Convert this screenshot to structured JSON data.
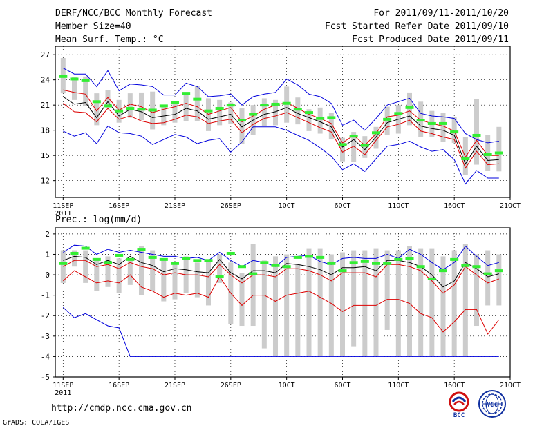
{
  "header": {
    "title": "DERF/NCC/BCC Monthly Forecast",
    "member_size": "Member Size=40",
    "variable": "Mean Surf. Temp.: °C",
    "period": "For 2011/09/11-2011/10/20",
    "fcst_started": "Fcst Started Refer Date 2011/09/10",
    "fcst_produced": "Fcst Produced Date 2011/09/11"
  },
  "footer": {
    "url": "http://cmdp.ncc.cma.gov.cn",
    "grads": "GrADS: COLA/IGES",
    "logo_bcc_text": "BCC",
    "logo_ncc_text": "NCC"
  },
  "colors": {
    "max_line": "#0000dd",
    "ensemble_mean": "#000000",
    "spread_lines": "#dd0000",
    "bars": "#cccccc",
    "observed_marks": "#33ee33",
    "grid": "#000000"
  },
  "chart_data": [
    {
      "type": "line",
      "title": "Mean Surf. Temp.: °C",
      "ylim": [
        10,
        28
      ],
      "yticks": [
        12,
        15,
        18,
        21,
        24,
        27
      ],
      "ytick_labels": [
        "12",
        "15",
        "18",
        "21",
        "24",
        "27"
      ],
      "xticks": [
        1,
        6,
        11,
        16,
        21,
        26,
        31,
        36,
        41
      ],
      "xtick_labels": [
        "11SEP",
        "16SEP",
        "21SEP",
        "26SEP",
        "1OCT",
        "6OCT",
        "11OCT",
        "16OCT",
        "21OCT"
      ],
      "x_year_label": "2011",
      "xlim": [
        0.3,
        41
      ],
      "grid": true,
      "days": [
        1,
        2,
        3,
        4,
        5,
        6,
        7,
        8,
        9,
        10,
        11,
        12,
        13,
        14,
        15,
        16,
        17,
        18,
        19,
        20,
        21,
        22,
        23,
        24,
        25,
        26,
        27,
        28,
        29,
        30,
        31,
        32,
        33,
        34,
        35,
        36,
        37,
        38,
        39,
        40
      ],
      "series": [
        {
          "name": "max",
          "color": "#0000dd",
          "values": [
            25.4,
            24.7,
            24.7,
            23.2,
            25.1,
            22.7,
            23.5,
            23.4,
            23.2,
            22.2,
            22.2,
            23.6,
            23.2,
            22.0,
            22.1,
            22.3,
            21.0,
            22.0,
            22.3,
            22.5,
            24.1,
            23.4,
            22.3,
            22.0,
            21.2,
            18.6,
            19.2,
            18.0,
            19.4,
            21.0,
            21.4,
            21.8,
            20.0,
            19.7,
            19.6,
            19.4,
            17.6,
            16.9,
            16.5,
            16.7
          ]
        },
        {
          "name": "upper",
          "color": "#dd0000",
          "values": [
            22.8,
            22.5,
            22.3,
            20.3,
            21.9,
            20.4,
            21.1,
            20.8,
            20.1,
            20.5,
            20.8,
            21.2,
            20.8,
            19.9,
            20.3,
            20.7,
            19.0,
            19.7,
            20.5,
            21.0,
            21.3,
            20.6,
            19.9,
            19.4,
            18.8,
            16.5,
            17.4,
            16.2,
            17.6,
            19.6,
            19.8,
            20.3,
            19.2,
            18.8,
            18.5,
            17.9,
            14.8,
            16.8,
            15.0,
            15.0
          ]
        },
        {
          "name": "mean",
          "color": "#000000",
          "values": [
            22.0,
            21.1,
            21.3,
            19.5,
            21.4,
            19.7,
            20.5,
            20.2,
            19.5,
            19.7,
            19.9,
            20.6,
            20.3,
            19.3,
            19.6,
            19.9,
            18.4,
            19.2,
            19.9,
            20.2,
            20.7,
            20.0,
            19.5,
            19.0,
            18.4,
            16.0,
            16.9,
            15.7,
            17.2,
            18.9,
            19.3,
            19.7,
            18.5,
            18.2,
            18.0,
            17.4,
            14.0,
            16.1,
            14.4,
            14.5
          ]
        },
        {
          "name": "lower",
          "color": "#dd0000",
          "values": [
            21.2,
            20.2,
            20.1,
            19.0,
            20.6,
            19.3,
            19.7,
            19.1,
            18.8,
            18.9,
            19.3,
            19.8,
            19.6,
            18.8,
            19.1,
            19.3,
            17.7,
            18.7,
            19.4,
            19.7,
            20.1,
            19.5,
            18.9,
            18.3,
            17.8,
            15.4,
            16.1,
            15.1,
            16.8,
            18.4,
            18.7,
            19.2,
            17.9,
            17.6,
            17.2,
            16.9,
            13.5,
            15.5,
            13.9,
            14.0
          ]
        },
        {
          "name": "min",
          "color": "#0000dd",
          "values": [
            17.9,
            17.3,
            17.7,
            16.4,
            18.5,
            17.7,
            17.6,
            17.3,
            16.3,
            16.9,
            17.5,
            17.2,
            16.4,
            16.8,
            17.0,
            15.4,
            16.6,
            18.4,
            18.4,
            18.4,
            18.0,
            17.4,
            16.8,
            15.9,
            14.9,
            13.3,
            14.0,
            13.1,
            14.6,
            16.1,
            16.3,
            16.7,
            16.0,
            15.5,
            15.7,
            14.5,
            11.6,
            13.2,
            12.3,
            12.3
          ]
        }
      ],
      "bars": [
        {
          "low": 22.4,
          "high": 26.6
        },
        {
          "low": 21.6,
          "high": 24.3
        },
        {
          "low": 20.9,
          "high": 24.4
        },
        {
          "low": 18.6,
          "high": 22.4
        },
        {
          "low": 20.7,
          "high": 22.8
        },
        {
          "low": 18.9,
          "high": 21.6
        },
        {
          "low": 19.5,
          "high": 22.4
        },
        {
          "low": 19.2,
          "high": 22.5
        },
        {
          "low": 18.1,
          "high": 22.6
        },
        {
          "low": 18.6,
          "high": 21.0
        },
        {
          "low": 18.9,
          "high": 21.5
        },
        {
          "low": 19.1,
          "high": 22.5
        },
        {
          "low": 19.1,
          "high": 23.3
        },
        {
          "low": 17.9,
          "high": 21.8
        },
        {
          "low": 18.6,
          "high": 21.6
        },
        {
          "low": 18.8,
          "high": 21.3
        },
        {
          "low": 16.4,
          "high": 20.6
        },
        {
          "low": 17.4,
          "high": 21.0
        },
        {
          "low": 18.5,
          "high": 21.8
        },
        {
          "low": 18.6,
          "high": 21.6
        },
        {
          "low": 18.9,
          "high": 23.2
        },
        {
          "low": 18.7,
          "high": 21.9
        },
        {
          "low": 17.9,
          "high": 20.5
        },
        {
          "low": 17.6,
          "high": 20.7
        },
        {
          "low": 16.9,
          "high": 20.1
        },
        {
          "low": 14.3,
          "high": 17.1
        },
        {
          "low": 14.2,
          "high": 17.8
        },
        {
          "low": 14.7,
          "high": 17.3
        },
        {
          "low": 15.8,
          "high": 18.4
        },
        {
          "low": 17.4,
          "high": 20.8
        },
        {
          "low": 17.6,
          "high": 21.0
        },
        {
          "low": 18.6,
          "high": 22.5
        },
        {
          "low": 17.2,
          "high": 21.4
        },
        {
          "low": 17.2,
          "high": 20.3
        },
        {
          "low": 16.6,
          "high": 20.1
        },
        {
          "low": 16.5,
          "high": 19.6
        },
        {
          "low": 12.7,
          "high": 17.2
        },
        {
          "low": 13.9,
          "high": 21.7
        },
        {
          "low": 13.2,
          "high": 17.4
        },
        {
          "low": 13.1,
          "high": 18.4
        }
      ],
      "observed": [
        24.4,
        24.1,
        23.9,
        21.4,
        20.9,
        20.3,
        20.6,
        20.5,
        20.4,
        20.9,
        21.3,
        22.4,
        21.7,
        20.3,
        20.6,
        21.0,
        19.2,
        19.9,
        21.0,
        21.1,
        21.2,
        20.5,
        20.1,
        19.4,
        19.5,
        16.3,
        17.3,
        16.2,
        17.7,
        19.3,
        20.0,
        20.7,
        19.2,
        18.8,
        18.8,
        17.8,
        14.6,
        17.4,
        15.1,
        15.3
      ]
    },
    {
      "type": "line",
      "title": "Prec.: log(mm/d)",
      "ylim": [
        -5,
        2.3
      ],
      "yticks": [
        -5,
        -4,
        -3,
        -2,
        -1,
        0,
        1,
        2
      ],
      "ytick_labels": [
        "-5",
        "-4",
        "-3",
        "-2",
        "-1",
        "0",
        "1",
        "2"
      ],
      "xticks": [
        1,
        6,
        11,
        16,
        21,
        26,
        31,
        36,
        41
      ],
      "xtick_labels": [
        "11SEP",
        "16SEP",
        "21SEP",
        "26SEP",
        "1OCT",
        "6OCT",
        "11OCT",
        "16OCT",
        "21OCT"
      ],
      "x_year_label": "2011",
      "xlim": [
        0.3,
        41
      ],
      "grid": true,
      "days": [
        1,
        2,
        3,
        4,
        5,
        6,
        7,
        8,
        9,
        10,
        11,
        12,
        13,
        14,
        15,
        16,
        17,
        18,
        19,
        20,
        21,
        22,
        23,
        24,
        25,
        26,
        27,
        28,
        29,
        30,
        31,
        32,
        33,
        34,
        35,
        36,
        37,
        38,
        39,
        40
      ],
      "series": [
        {
          "name": "max",
          "color": "#0000dd",
          "values": [
            1.1,
            1.45,
            1.4,
            1.0,
            1.25,
            1.1,
            1.2,
            1.1,
            1.0,
            0.9,
            0.9,
            0.8,
            0.85,
            0.7,
            1.1,
            0.7,
            0.4,
            0.7,
            0.6,
            0.4,
            0.85,
            0.9,
            0.95,
            0.65,
            0.5,
            0.8,
            0.85,
            0.8,
            0.8,
            1.0,
            0.8,
            1.25,
            1.0,
            0.6,
            0.25,
            0.6,
            1.4,
            0.9,
            0.45,
            0.6
          ]
        },
        {
          "name": "mean",
          "color": "#000000",
          "values": [
            0.7,
            0.9,
            0.85,
            0.5,
            0.7,
            0.5,
            0.9,
            0.6,
            0.45,
            0.15,
            0.3,
            0.25,
            0.15,
            0.1,
            0.75,
            0.1,
            -0.2,
            0.2,
            0.2,
            0.1,
            0.55,
            0.5,
            0.4,
            0.25,
            0.0,
            0.35,
            0.35,
            0.4,
            0.2,
            0.7,
            0.7,
            0.6,
            0.4,
            0.0,
            -0.6,
            -0.3,
            0.6,
            0.3,
            -0.1,
            0.05
          ]
        },
        {
          "name": "upper",
          "color": "#dd0000",
          "values": [
            0.4,
            0.7,
            0.7,
            0.4,
            0.5,
            0.3,
            0.6,
            0.4,
            0.3,
            0.0,
            0.1,
            0.0,
            0.0,
            -0.1,
            0.5,
            0.0,
            -0.4,
            0.0,
            0.0,
            -0.1,
            0.3,
            0.3,
            0.2,
            0.0,
            -0.3,
            0.1,
            0.1,
            0.1,
            -0.1,
            0.5,
            0.5,
            0.4,
            0.2,
            -0.3,
            -0.9,
            -0.5,
            0.4,
            0.0,
            -0.4,
            -0.2
          ]
        },
        {
          "name": "lower",
          "color": "#dd0000",
          "values": [
            -0.3,
            0.2,
            -0.1,
            -0.4,
            -0.3,
            -0.4,
            0.0,
            -0.6,
            -0.8,
            -1.1,
            -0.9,
            -1.0,
            -0.9,
            -1.1,
            -0.1,
            -0.9,
            -1.5,
            -1.0,
            -1.0,
            -1.3,
            -1.0,
            -0.9,
            -0.8,
            -1.1,
            -1.4,
            -1.8,
            -1.5,
            -1.5,
            -1.5,
            -1.2,
            -1.2,
            -1.4,
            -1.9,
            -2.1,
            -2.8,
            -2.3,
            -1.7,
            -1.7,
            -2.9,
            -2.2
          ]
        },
        {
          "name": "min",
          "color": "#0000dd",
          "values": [
            -1.6,
            -2.1,
            -1.9,
            -2.2,
            -2.5,
            -2.6,
            -4.0,
            -4.0,
            -4.0,
            -4.0,
            -4.0,
            -4.0,
            -4.0,
            -4.0,
            -4.0,
            -4.0,
            -4.0,
            -4.0,
            -4.0,
            -4.0,
            -4.0,
            -4.0,
            -4.0,
            -4.0,
            -4.0,
            -4.0,
            -4.0,
            -4.0,
            -4.0,
            -4.0,
            -4.0,
            -4.0,
            -4.0,
            -4.0,
            -4.0,
            -4.0,
            -4.0,
            -4.0,
            -4.0,
            -4.0
          ]
        }
      ],
      "bars": [
        {
          "low": -0.4,
          "high": 1.2
        },
        {
          "low": 0.4,
          "high": 1.2
        },
        {
          "low": -0.4,
          "high": 1.2
        },
        {
          "low": -0.8,
          "high": 0.8
        },
        {
          "low": -0.6,
          "high": 0.9
        },
        {
          "low": -0.9,
          "high": 0.8
        },
        {
          "low": -0.5,
          "high": 0.7
        },
        {
          "low": -1.0,
          "high": 1.4
        },
        {
          "low": -0.8,
          "high": 1.2
        },
        {
          "low": -1.3,
          "high": 0.8
        },
        {
          "low": -1.2,
          "high": 0.5
        },
        {
          "low": -0.9,
          "high": 0.9
        },
        {
          "low": -1.1,
          "high": 0.6
        },
        {
          "low": -1.5,
          "high": 0.7
        },
        {
          "low": -0.4,
          "high": 1.0
        },
        {
          "low": -2.4,
          "high": 0.6
        },
        {
          "low": -2.5,
          "high": 0.1
        },
        {
          "low": -2.5,
          "high": 1.5
        },
        {
          "low": -3.6,
          "high": 0.7
        },
        {
          "low": -4.0,
          "high": 0.9
        },
        {
          "low": -4.0,
          "high": 1.0
        },
        {
          "low": -4.0,
          "high": 0.5
        },
        {
          "low": -4.0,
          "high": 1.3
        },
        {
          "low": -4.0,
          "high": 1.3
        },
        {
          "low": -4.0,
          "high": 1.0
        },
        {
          "low": -4.0,
          "high": 1.1
        },
        {
          "low": -3.5,
          "high": 1.2
        },
        {
          "low": -4.0,
          "high": 1.2
        },
        {
          "low": -4.0,
          "high": 1.3
        },
        {
          "low": -2.7,
          "high": 1.2
        },
        {
          "low": -4.0,
          "high": 1.2
        },
        {
          "low": -4.0,
          "high": 1.4
        },
        {
          "low": -4.0,
          "high": 1.3
        },
        {
          "low": -4.0,
          "high": 1.3
        },
        {
          "low": -4.0,
          "high": 0.9
        },
        {
          "low": -4.0,
          "high": 1.2
        },
        {
          "low": -4.0,
          "high": 1.5
        },
        {
          "low": -2.5,
          "high": 1.0
        },
        {
          "low": -1.5,
          "high": 1.2
        },
        {
          "low": -1.5,
          "high": 1.0
        }
      ],
      "observed": [
        0.55,
        1.05,
        1.3,
        0.75,
        0.6,
        0.95,
        0.75,
        1.25,
        0.85,
        0.75,
        0.55,
        0.8,
        0.7,
        0.7,
        -0.1,
        1.05,
        0.4,
        0.05,
        0.6,
        0.45,
        0.4,
        0.85,
        0.9,
        0.85,
        0.55,
        0.2,
        0.6,
        0.65,
        0.55,
        0.55,
        0.75,
        0.8,
        0.4,
        -0.2,
        0.2,
        0.75,
        0.45,
        0.4,
        0.05,
        0.2
      ]
    }
  ]
}
